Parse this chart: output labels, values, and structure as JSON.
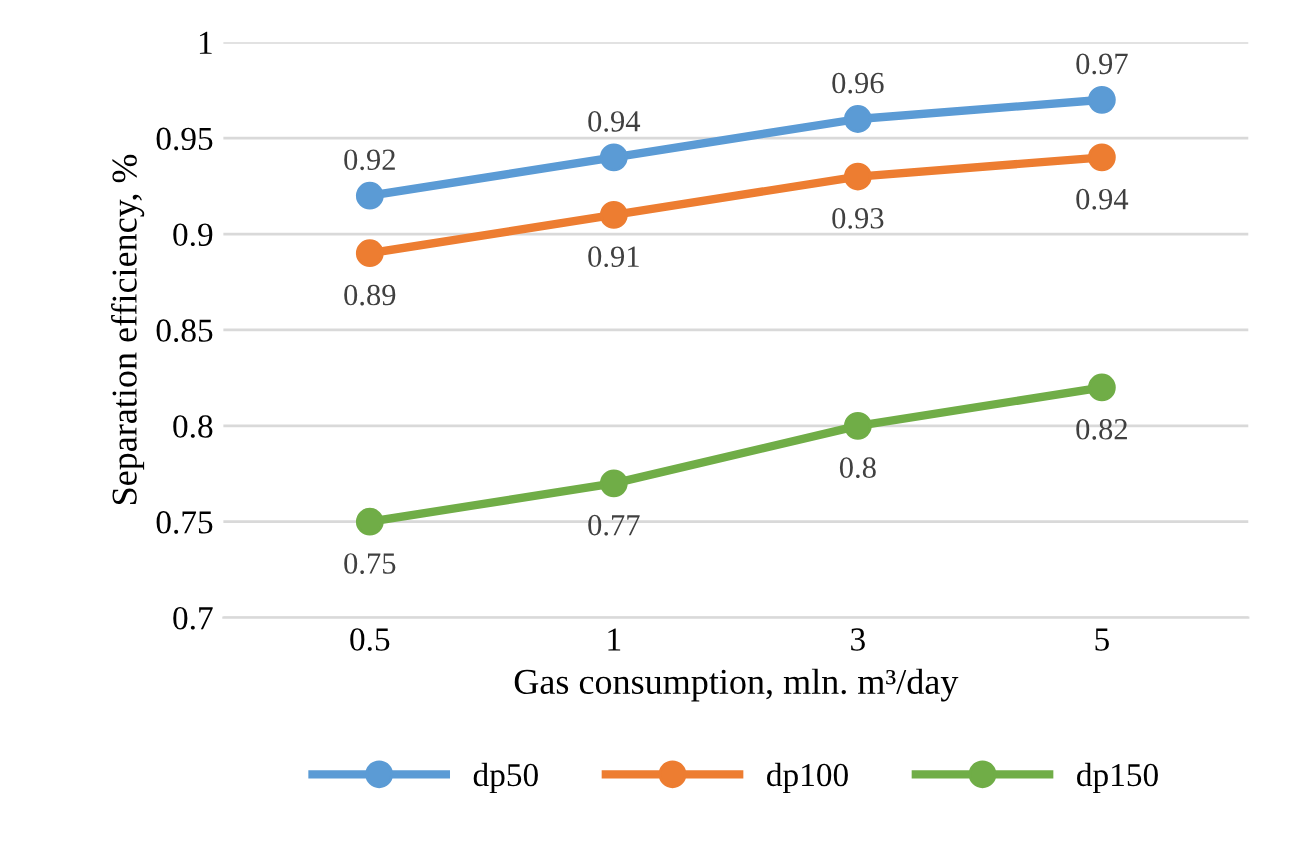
{
  "chart_data": {
    "type": "line",
    "xlabel": "Gas consumption, mln. m³/day",
    "ylabel": "Separation efficiency, %",
    "categories": [
      "0.5",
      "1",
      "3",
      "5"
    ],
    "series": [
      {
        "name": "dp50",
        "color": "#5b9bd5",
        "values": [
          0.92,
          0.94,
          0.96,
          0.97
        ]
      },
      {
        "name": "dp100",
        "color": "#ed7d31",
        "values": [
          0.89,
          0.91,
          0.93,
          0.94
        ]
      },
      {
        "name": "dp150",
        "color": "#70ad47",
        "values": [
          0.75,
          0.77,
          0.8,
          0.82
        ]
      }
    ],
    "ylim": [
      0.7,
      1
    ],
    "yticks": [
      0.7,
      0.75,
      0.8,
      0.85,
      0.9,
      0.95,
      1
    ],
    "grid": "y",
    "legend": "bottom",
    "marker": "circle",
    "line_style": "solid",
    "data_labels": true
  }
}
